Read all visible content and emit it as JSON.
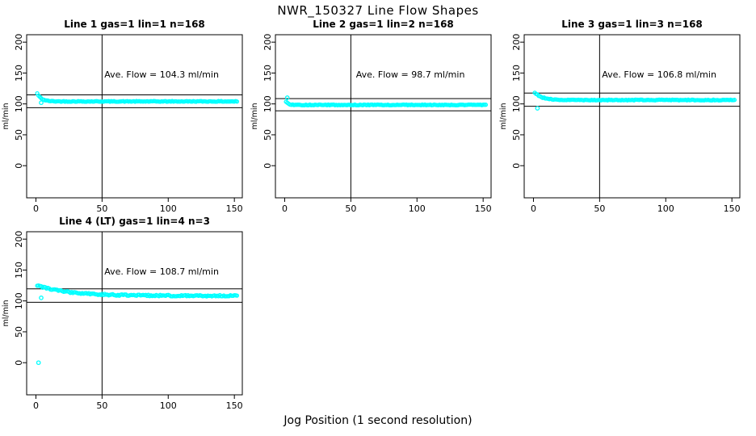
{
  "figure": {
    "title": "NWR_150327  Line Flow Shapes",
    "xlabel": "Jog Position (1 second resolution)",
    "marker_color": "#00FFFF",
    "axis_color": "#000000",
    "background": "#ffffff"
  },
  "chart_data": [
    {
      "type": "scatter",
      "title": "Line 1 gas=1 lin=1 n=168",
      "annotation": "Ave. Flow =  104.3  ml/min",
      "ave_flow": 104.3,
      "unit": "ml/min",
      "ylabel": "ml/min",
      "x_ticks": [
        0,
        50,
        100,
        150
      ],
      "y_ticks": [
        0,
        50,
        100,
        150,
        200
      ],
      "xlim": [
        -7,
        156
      ],
      "ylim": [
        -52,
        212
      ],
      "vline_x": 50,
      "ref_lines": [
        114.7,
        93.9
      ],
      "grid": false,
      "series": {
        "name": "flow",
        "n": 152,
        "x_start": 1,
        "start": 117,
        "plateau": 104.0,
        "tau": 3.2,
        "noise": 0.55
      },
      "outliers": [
        [
          4,
          102
        ]
      ],
      "annotation_pos": {
        "x": 95,
        "y": 143
      }
    },
    {
      "type": "scatter",
      "title": "Line 2 gas=1 lin=2 n=168",
      "annotation": "Ave. Flow =  98.7  ml/min",
      "ave_flow": 98.7,
      "unit": "ml/min",
      "ylabel": "ml/min",
      "x_ticks": [
        0,
        50,
        100,
        150
      ],
      "y_ticks": [
        0,
        50,
        100,
        150,
        200
      ],
      "xlim": [
        -7,
        156
      ],
      "ylim": [
        -52,
        212
      ],
      "vline_x": 50,
      "ref_lines": [
        108.6,
        88.8
      ],
      "grid": false,
      "series": {
        "name": "flow",
        "n": 152,
        "x_start": 1,
        "start": 104,
        "plateau": 98.4,
        "tau": 1.6,
        "noise": 0.6
      },
      "outliers": [
        [
          2,
          110
        ]
      ],
      "annotation_pos": {
        "x": 95,
        "y": 143
      }
    },
    {
      "type": "scatter",
      "title": "Line 3 gas=1 lin=3 n=168",
      "annotation": "Ave. Flow =  106.8  ml/min",
      "ave_flow": 106.8,
      "unit": "ml/min",
      "ylabel": "ml/min",
      "x_ticks": [
        0,
        50,
        100,
        150
      ],
      "y_ticks": [
        0,
        50,
        100,
        150,
        200
      ],
      "xlim": [
        -7,
        156
      ],
      "ylim": [
        -52,
        212
      ],
      "vline_x": 50,
      "ref_lines": [
        117.5,
        96.1
      ],
      "grid": false,
      "series": {
        "name": "flow",
        "n": 152,
        "x_start": 1,
        "start": 118.5,
        "plateau": 106.3,
        "tau": 5.5,
        "noise": 0.6
      },
      "outliers": [
        [
          3,
          93
        ]
      ],
      "annotation_pos": {
        "x": 95,
        "y": 143
      }
    },
    {
      "type": "scatter",
      "title": "Line 4 (LT) gas=1 lin=4 n=3",
      "annotation": "Ave. Flow =  108.7  ml/min",
      "ave_flow": 108.7,
      "unit": "ml/min",
      "ylabel": "ml/min",
      "x_ticks": [
        0,
        50,
        100,
        150
      ],
      "y_ticks": [
        0,
        50,
        100,
        150,
        200
      ],
      "xlim": [
        -7,
        156
      ],
      "ylim": [
        -52,
        212
      ],
      "vline_x": 50,
      "ref_lines": [
        119.6,
        97.8
      ],
      "grid": false,
      "series": {
        "name": "flow",
        "n": 152,
        "x_start": 1,
        "start": 125,
        "plateau": 108.3,
        "tau": 24,
        "noise": 1.1
      },
      "outliers": [
        [
          2,
          0
        ],
        [
          4,
          105
        ]
      ],
      "annotation_pos": {
        "x": 95,
        "y": 143
      }
    }
  ]
}
